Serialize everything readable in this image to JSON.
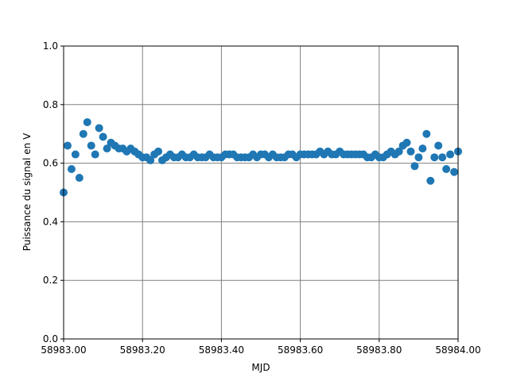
{
  "chart_data": {
    "type": "scatter",
    "xlabel": "MJD",
    "ylabel": "Puissance du signal en V",
    "color": "#1f77b4",
    "grid": true,
    "xlim": [
      58983.0,
      58984.0
    ],
    "xticks": [
      {
        "value": 58983.0,
        "label": "58983.00"
      },
      {
        "value": 58983.2,
        "label": "58983.20"
      },
      {
        "value": 58983.4,
        "label": "58983.40"
      },
      {
        "value": 58983.6,
        "label": "58983.60"
      },
      {
        "value": 58983.8,
        "label": "58983.80"
      },
      {
        "value": 58984.0,
        "label": "58984.00"
      }
    ],
    "ylim": [
      0,
      1
    ],
    "yticks": [
      {
        "value": 0,
        "label": "0.0"
      },
      0.2,
      0.4,
      0.6,
      0.8,
      {
        "value": 1,
        "label": "1.0"
      }
    ],
    "x": [
      58983.0,
      58983.01,
      58983.02,
      58983.03,
      58983.04,
      58983.05,
      58983.06,
      58983.07,
      58983.08,
      58983.09,
      58983.1,
      58983.11,
      58983.12,
      58983.13,
      58983.14,
      58983.15,
      58983.16,
      58983.17,
      58983.18,
      58983.19,
      58983.2,
      58983.21,
      58983.22,
      58983.23,
      58983.24,
      58983.25,
      58983.26,
      58983.27,
      58983.28,
      58983.29,
      58983.3,
      58983.31,
      58983.32,
      58983.33,
      58983.34,
      58983.35,
      58983.36,
      58983.37,
      58983.38,
      58983.39,
      58983.4,
      58983.41,
      58983.42,
      58983.43,
      58983.44,
      58983.45,
      58983.46,
      58983.47,
      58983.48,
      58983.49,
      58983.5,
      58983.51,
      58983.52,
      58983.53,
      58983.54,
      58983.55,
      58983.56,
      58983.57,
      58983.58,
      58983.59,
      58983.6,
      58983.61,
      58983.62,
      58983.63,
      58983.64,
      58983.65,
      58983.66,
      58983.67,
      58983.68,
      58983.69,
      58983.7,
      58983.71,
      58983.72,
      58983.73,
      58983.74,
      58983.75,
      58983.76,
      58983.77,
      58983.78,
      58983.79,
      58983.8,
      58983.81,
      58983.82,
      58983.83,
      58983.84,
      58983.85,
      58983.86,
      58983.87,
      58983.88,
      58983.89,
      58983.9,
      58983.91,
      58983.92,
      58983.93,
      58983.94,
      58983.95,
      58983.96,
      58983.97,
      58983.98,
      58983.99,
      58984.0
    ],
    "values": [
      0.5,
      0.66,
      0.58,
      0.63,
      0.55,
      0.7,
      0.74,
      0.66,
      0.63,
      0.72,
      0.69,
      0.65,
      0.67,
      0.66,
      0.65,
      0.65,
      0.64,
      0.65,
      0.64,
      0.63,
      0.62,
      0.62,
      0.61,
      0.63,
      0.64,
      0.61,
      0.62,
      0.63,
      0.62,
      0.62,
      0.63,
      0.62,
      0.62,
      0.63,
      0.62,
      0.62,
      0.62,
      0.63,
      0.62,
      0.62,
      0.62,
      0.63,
      0.63,
      0.63,
      0.62,
      0.62,
      0.62,
      0.62,
      0.63,
      0.62,
      0.63,
      0.63,
      0.62,
      0.63,
      0.62,
      0.62,
      0.62,
      0.63,
      0.63,
      0.62,
      0.63,
      0.63,
      0.63,
      0.63,
      0.63,
      0.64,
      0.63,
      0.64,
      0.63,
      0.63,
      0.64,
      0.63,
      0.63,
      0.63,
      0.63,
      0.63,
      0.63,
      0.62,
      0.62,
      0.63,
      0.62,
      0.62,
      0.63,
      0.64,
      0.63,
      0.64,
      0.66,
      0.67,
      0.64,
      0.59,
      0.62,
      0.65,
      0.7,
      0.54,
      0.62,
      0.66,
      0.62,
      0.58,
      0.63,
      0.57,
      0.64
    ]
  }
}
